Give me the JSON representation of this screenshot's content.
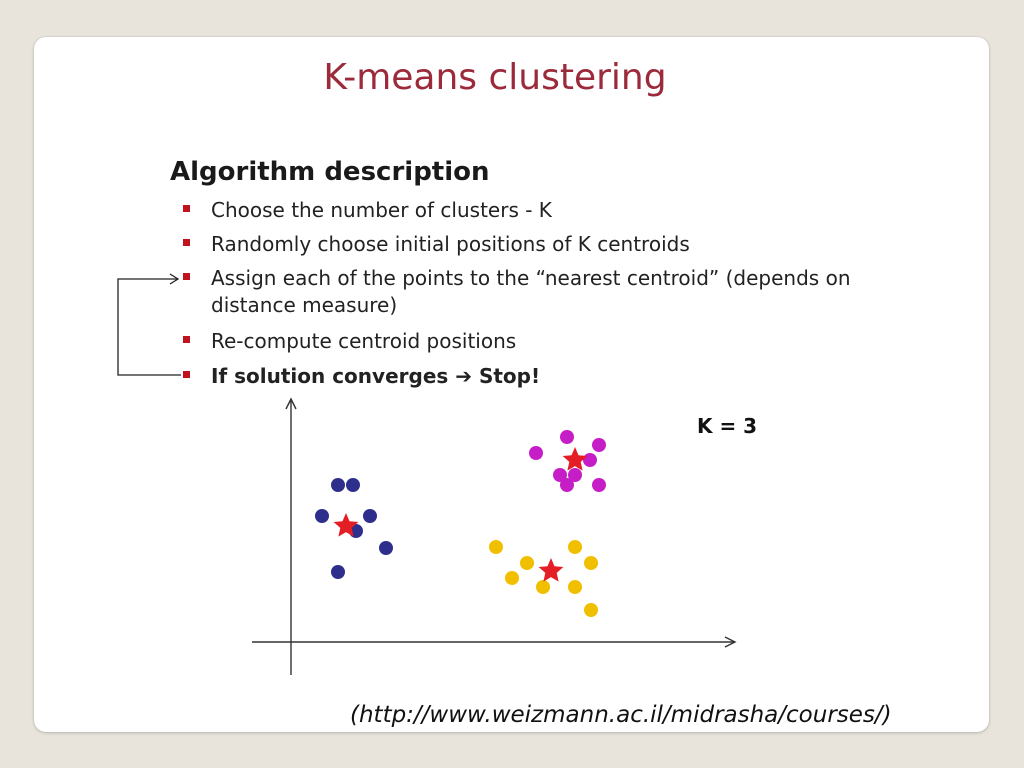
{
  "title": "K-means clustering",
  "algorithm": {
    "heading": "Algorithm description",
    "steps": [
      {
        "lines": [
          "Choose the number of clusters - K"
        ],
        "bold": false
      },
      {
        "lines": [
          "Randomly choose initial positions of K centroids"
        ],
        "bold": false
      },
      {
        "lines": [
          "Assign each of the points to the “nearest centroid”  (depends on",
          "distance measure)"
        ],
        "bold": false
      },
      {
        "lines": [
          "Re-compute centroid  positions"
        ],
        "bold": false
      },
      {
        "lines": [
          "If solution converges ➔ Stop!"
        ],
        "bold": true
      }
    ]
  },
  "plot": {
    "k_label": "K = 3",
    "colors": {
      "bullet": "#c0121f",
      "blue": "#2e2e8c",
      "magenta": "#c61ec6",
      "yellow": "#f0c000",
      "star": "#e51d25",
      "axis": "#333333"
    },
    "icons": [
      "arrow-right-icon",
      "star-icon"
    ]
  },
  "source": "(http://www.weizmann.ac.il/midrasha/courses/)"
}
